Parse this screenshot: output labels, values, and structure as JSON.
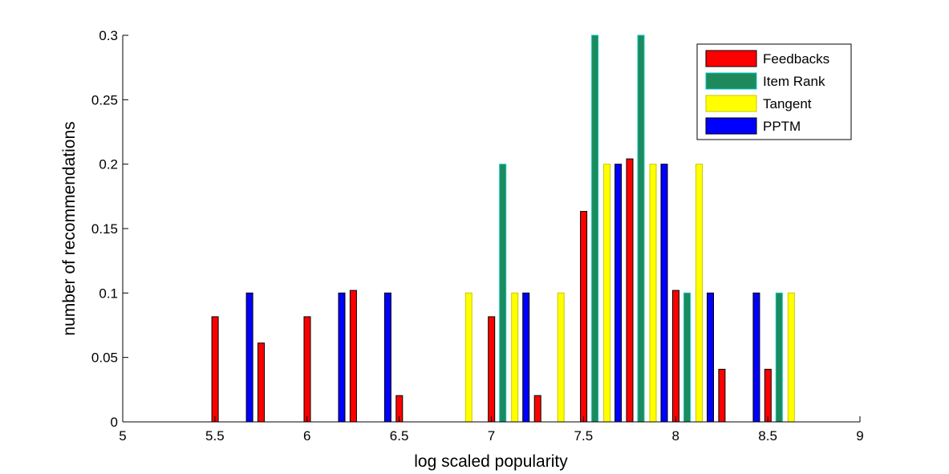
{
  "chart_data": {
    "type": "bar",
    "xlabel": "log scaled popularity",
    "ylabel": "number of recommendations",
    "xlim": [
      5,
      9
    ],
    "ylim": [
      0,
      0.3
    ],
    "xticks": [
      "5",
      "5.5",
      "6",
      "6.5",
      "7",
      "7.5",
      "8",
      "8.5",
      "9"
    ],
    "yticks": [
      "0",
      "0.05",
      "0.1",
      "0.15",
      "0.2",
      "0.25",
      "0.3"
    ],
    "grid": false,
    "legend_position": "top-right",
    "bin_centers": [
      5.125,
      5.375,
      5.625,
      5.875,
      6.125,
      6.375,
      6.625,
      6.875,
      7.125,
      7.375,
      7.625,
      7.875,
      8.125,
      8.375,
      8.625,
      8.875
    ],
    "series": [
      {
        "name": "Feedbacks",
        "color": "#ff0000",
        "stroke": "#000000",
        "values": [
          0,
          0,
          0.0816,
          0.0612,
          0.0816,
          0.102,
          0.0204,
          0,
          0.0816,
          0.0204,
          0.1633,
          0.2041,
          0.102,
          0.0408,
          0.0408,
          0
        ]
      },
      {
        "name": "Item Rank",
        "color": "#1e8a5c",
        "stroke": "#00c8c8",
        "values": [
          0,
          0,
          0,
          0,
          0,
          0,
          0,
          0,
          0.2,
          0,
          0.3,
          0.3,
          0.1,
          0,
          0.1,
          0
        ]
      },
      {
        "name": "Tangent",
        "color": "#ffff00",
        "stroke": "#c8c800",
        "values": [
          0,
          0,
          0,
          0,
          0,
          0,
          0,
          0.1,
          0.1,
          0.1,
          0.2,
          0.2,
          0.2,
          0,
          0.1,
          0
        ]
      },
      {
        "name": "PPTM",
        "color": "#0000ff",
        "stroke": "#000000",
        "values": [
          0,
          0,
          0.1,
          0,
          0.1,
          0.1,
          0,
          0,
          0.1,
          0,
          0.2,
          0.2,
          0.1,
          0.1,
          0,
          0
        ]
      }
    ]
  }
}
